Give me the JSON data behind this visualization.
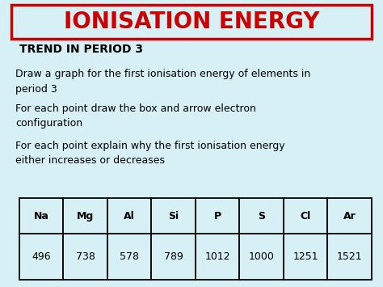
{
  "title": "IONISATION ENERGY",
  "title_color": "#cc0000",
  "title_box_edge_color": "#cc0000",
  "background_color": "#d6f0f5",
  "heading": "TREND IN PERIOD 3",
  "heading_color": "#000000",
  "body_lines": [
    "Draw a graph for the first ionisation energy of elements in\nperiod 3",
    "For each point draw the box and arrow electron\nconfiguration",
    "For each point explain why the first ionisation energy\neither increases or decreases"
  ],
  "body_color": "#000000",
  "table_elements": [
    "Na",
    "Mg",
    "Al",
    "Si",
    "P",
    "S",
    "Cl",
    "Ar"
  ],
  "table_values": [
    "496",
    "738",
    "578",
    "789",
    "1012",
    "1000",
    "1251",
    "1521"
  ],
  "table_bg": "#d6f0f5",
  "table_border_color": "#000000",
  "title_fontsize": 20,
  "heading_fontsize": 10,
  "body_fontsize": 9,
  "table_header_fontsize": 9,
  "table_value_fontsize": 9
}
